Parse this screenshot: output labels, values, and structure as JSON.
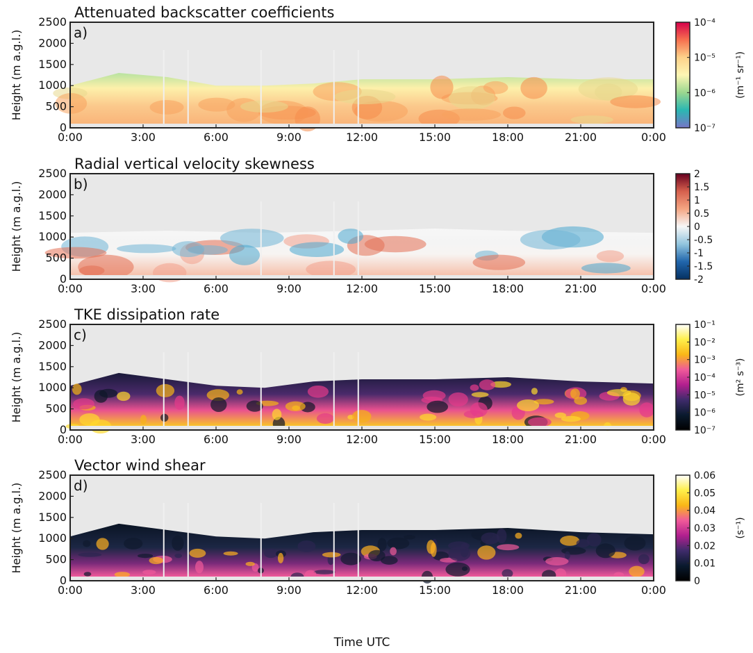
{
  "figure": {
    "xlabel": "Time UTC"
  },
  "chart_data": [
    {
      "type": "heatmap",
      "panel_label": "a)",
      "title": "Attenuated backscatter coefficients",
      "ylabel": "Height (m a.g.l.)",
      "ylim": [
        0,
        2500
      ],
      "y_ticks": [
        "0",
        "500",
        "1000",
        "1500",
        "2000",
        "2500"
      ],
      "x_ticks": [
        "0:00",
        "3:00",
        "6:00",
        "9:00",
        "12:00",
        "15:00",
        "18:00",
        "21:00",
        "0:00"
      ],
      "x_hours": [
        0,
        24
      ],
      "scale": "log",
      "colorbar": {
        "unit": "(m⁻¹ sr⁻¹)",
        "ticks": [
          "10⁻⁴",
          "10⁻⁵",
          "10⁻⁶",
          "10⁻⁷"
        ],
        "colors": [
          "#d6004a",
          "#f7704f",
          "#fdd18a",
          "#fdf6b4",
          "#9ad78f",
          "#2bb7b2",
          "#7775c7"
        ]
      },
      "boundary_layer_top_m": [
        [
          0,
          1000
        ],
        [
          2,
          1300
        ],
        [
          4,
          1200
        ],
        [
          6,
          1000
        ],
        [
          8,
          1000
        ],
        [
          10,
          1050
        ],
        [
          12,
          1150
        ],
        [
          15,
          1150
        ],
        [
          18,
          1200
        ],
        [
          21,
          1150
        ],
        [
          24,
          1150
        ]
      ],
      "gap_hours": [
        3.85,
        4.85,
        7.85,
        10.85,
        11.85
      ]
    },
    {
      "type": "heatmap",
      "panel_label": "b)",
      "title": "Radial vertical velocity skewness",
      "ylabel": "Height (m a.g.l.)",
      "ylim": [
        0,
        2500
      ],
      "y_ticks": [
        "0",
        "500",
        "1000",
        "1500",
        "2000",
        "2500"
      ],
      "x_ticks": [
        "0:00",
        "3:00",
        "6:00",
        "9:00",
        "12:00",
        "15:00",
        "18:00",
        "21:00",
        "0:00"
      ],
      "x_hours": [
        0,
        24
      ],
      "scale": "linear",
      "colorbar": {
        "unit": "",
        "ticks": [
          "2",
          "1.5",
          "1",
          "0.5",
          "0",
          "-0.5",
          "-1",
          "-1.5",
          "-2"
        ],
        "colors": [
          "#67001f",
          "#d6604d",
          "#f4a582",
          "#f7f7f7",
          "#92c5de",
          "#2166ac",
          "#053061"
        ]
      },
      "boundary_layer_top_m": [
        [
          0,
          1100
        ],
        [
          4,
          1150
        ],
        [
          8,
          1100
        ],
        [
          12,
          1150
        ],
        [
          15,
          1200
        ],
        [
          18,
          1150
        ],
        [
          24,
          1100
        ]
      ],
      "gap_hours": [
        7.85,
        10.85,
        11.85
      ]
    },
    {
      "type": "heatmap",
      "panel_label": "c)",
      "title": "TKE dissipation rate",
      "ylabel": "Height (m a.g.l.)",
      "ylim": [
        0,
        2500
      ],
      "y_ticks": [
        "0",
        "500",
        "1000",
        "1500",
        "2000",
        "2500"
      ],
      "x_ticks": [
        "0:00",
        "3:00",
        "6:00",
        "9:00",
        "12:00",
        "15:00",
        "18:00",
        "21:00",
        "0:00"
      ],
      "x_hours": [
        0,
        24
      ],
      "scale": "log",
      "colorbar": {
        "unit": "(m² s⁻³)",
        "ticks": [
          "10⁻¹",
          "10⁻²",
          "10⁻³",
          "10⁻⁴",
          "10⁻⁵",
          "10⁻⁶",
          "10⁻⁷"
        ],
        "colors": [
          "#ffffff",
          "#ffef4a",
          "#f9b717",
          "#f05a9a",
          "#b21f8f",
          "#3f2b6b",
          "#0a1a2e",
          "#000000"
        ]
      },
      "boundary_layer_top_m": [
        [
          0,
          1050
        ],
        [
          2,
          1350
        ],
        [
          4,
          1200
        ],
        [
          6,
          1050
        ],
        [
          8,
          1000
        ],
        [
          10,
          1150
        ],
        [
          12,
          1200
        ],
        [
          15,
          1200
        ],
        [
          18,
          1250
        ],
        [
          21,
          1150
        ],
        [
          24,
          1100
        ]
      ],
      "gap_hours": [
        3.85,
        4.85,
        7.85,
        10.85,
        11.85
      ]
    },
    {
      "type": "heatmap",
      "panel_label": "d)",
      "title": "Vector wind shear",
      "ylabel": "Height (m a.g.l.)",
      "ylim": [
        0,
        2500
      ],
      "y_ticks": [
        "0",
        "500",
        "1000",
        "1500",
        "2000",
        "2500"
      ],
      "x_ticks": [
        "0:00",
        "3:00",
        "6:00",
        "9:00",
        "12:00",
        "15:00",
        "18:00",
        "21:00",
        "0:00"
      ],
      "x_hours": [
        0,
        24
      ],
      "scale": "linear",
      "colorbar": {
        "unit": "(s⁻¹)",
        "ticks": [
          "0.06",
          "0.05",
          "0.04",
          "0.03",
          "0.02",
          "0.01",
          "0"
        ],
        "colors": [
          "#ffffff",
          "#ffef4a",
          "#f9b717",
          "#f05a9a",
          "#b21f8f",
          "#3f2b6b",
          "#0a1a2e",
          "#000000"
        ]
      },
      "boundary_layer_top_m": [
        [
          0,
          1050
        ],
        [
          2,
          1350
        ],
        [
          4,
          1200
        ],
        [
          6,
          1050
        ],
        [
          8,
          1000
        ],
        [
          10,
          1150
        ],
        [
          12,
          1200
        ],
        [
          15,
          1200
        ],
        [
          18,
          1250
        ],
        [
          21,
          1150
        ],
        [
          24,
          1100
        ]
      ],
      "gap_hours": [
        3.85,
        4.85,
        7.85,
        10.85,
        11.85
      ]
    }
  ]
}
